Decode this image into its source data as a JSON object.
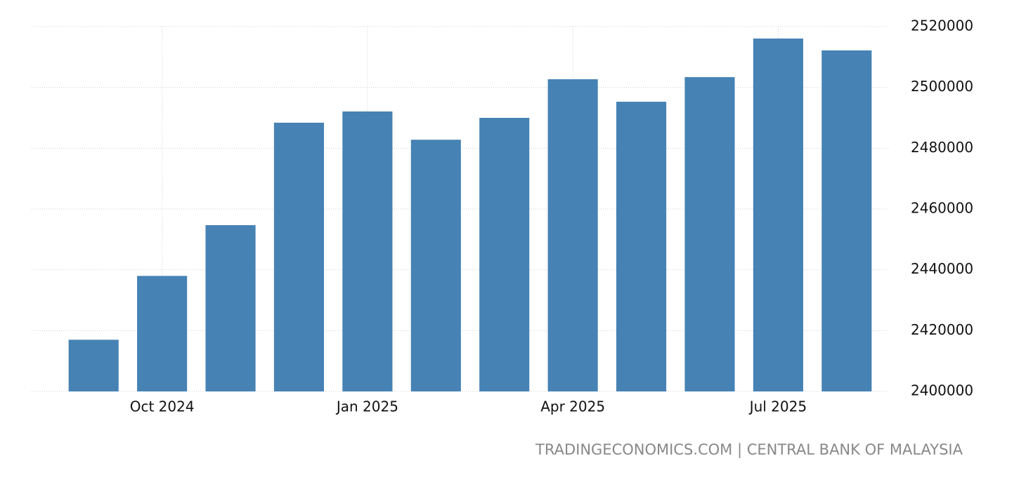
{
  "chart_data": {
    "type": "bar",
    "source": "TRADINGECONOMICS.COM | CENTRAL BANK OF MALAYSIA",
    "categories": [
      null,
      "Oct 2024",
      null,
      null,
      "Jan 2025",
      null,
      null,
      "Apr 2025",
      null,
      null,
      "Jul 2025",
      null
    ],
    "values": [
      2417000,
      2438000,
      2454700,
      2488400,
      2492100,
      2482800,
      2490000,
      2502700,
      2495300,
      2503400,
      2516100,
      2512200
    ],
    "color": "#4682b4",
    "ylim": [
      2400000,
      2520000
    ],
    "yticks": [
      2400000,
      2420000,
      2440000,
      2460000,
      2480000,
      2500000,
      2520000
    ],
    "grid": true
  }
}
